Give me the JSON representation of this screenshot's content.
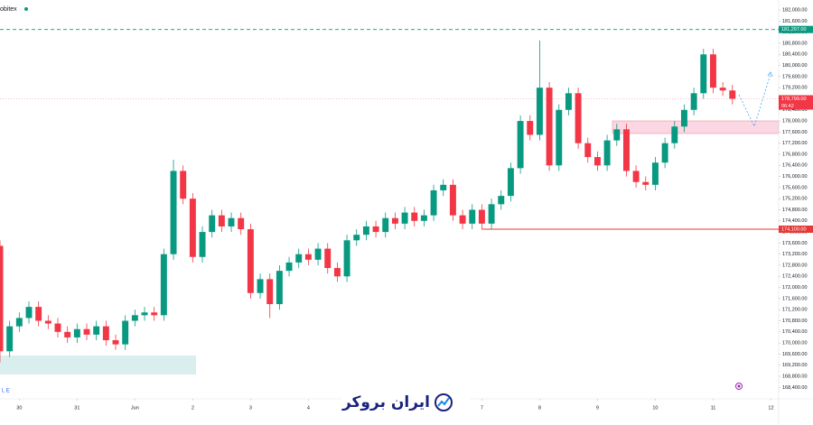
{
  "chart_data": {
    "type": "candlestick",
    "symbol": "obitex",
    "footer_left": "L E",
    "watermark": "ایران بروکر",
    "countdown": "06:42",
    "up_color": "#089981",
    "down_color": "#f23645",
    "xlim": [
      0,
      80.8
    ],
    "xticks": [
      {
        "value": 2,
        "label": "30"
      },
      {
        "value": 8,
        "label": "31"
      },
      {
        "value": 14,
        "label": "Jun"
      },
      {
        "value": 20,
        "label": "2"
      },
      {
        "value": 26,
        "label": "3"
      },
      {
        "value": 32,
        "label": "4"
      },
      {
        "value": 50,
        "label": "7"
      },
      {
        "value": 56,
        "label": "8"
      },
      {
        "value": 62,
        "label": "9"
      },
      {
        "value": 68,
        "label": "10"
      },
      {
        "value": 74,
        "label": "11"
      },
      {
        "value": 80,
        "label": "12"
      }
    ],
    "ylim": [
      168000,
      182360
    ],
    "yticks": [
      {
        "value": 168400,
        "label": "168,400.00"
      },
      {
        "value": 168800,
        "label": "168,800.00"
      },
      {
        "value": 169200,
        "label": "169,200.00"
      },
      {
        "value": 169600,
        "label": "169,600.00"
      },
      {
        "value": 170000,
        "label": "170,000.00"
      },
      {
        "value": 170400,
        "label": "170,400.00"
      },
      {
        "value": 170800,
        "label": "170,800.00"
      },
      {
        "value": 171200,
        "label": "171,200.00"
      },
      {
        "value": 171600,
        "label": "171,600.00"
      },
      {
        "value": 172000,
        "label": "172,000.00"
      },
      {
        "value": 172400,
        "label": "172,400.00"
      },
      {
        "value": 172800,
        "label": "172,800.00"
      },
      {
        "value": 173200,
        "label": "173,200.00"
      },
      {
        "value": 173600,
        "label": "173,600.00"
      },
      {
        "value": 174000,
        "label": "174,000.00"
      },
      {
        "value": 174400,
        "label": "174,400.00"
      },
      {
        "value": 174800,
        "label": "174,800.00"
      },
      {
        "value": 175200,
        "label": "175,200.00"
      },
      {
        "value": 175600,
        "label": "175,600.00"
      },
      {
        "value": 176000,
        "label": "176,000.00"
      },
      {
        "value": 176400,
        "label": "176,400.00"
      },
      {
        "value": 176800,
        "label": "176,800.00"
      },
      {
        "value": 177200,
        "label": "177,200.00"
      },
      {
        "value": 177600,
        "label": "177,600.00"
      },
      {
        "value": 178000,
        "label": "178,000.00"
      },
      {
        "value": 178400,
        "label": "178,400.00"
      },
      {
        "value": 178800,
        "label": "178,800.00"
      },
      {
        "value": 179200,
        "label": "179,200.00"
      },
      {
        "value": 179600,
        "label": "179,600.00"
      },
      {
        "value": 180000,
        "label": "180,000.00"
      },
      {
        "value": 180400,
        "label": "180,400.00"
      },
      {
        "value": 180800,
        "label": "180,800.00"
      },
      {
        "value": 181200,
        "label": "181,200.00"
      },
      {
        "value": 181600,
        "label": "181,600.00"
      },
      {
        "value": 182000,
        "label": "182,000.00"
      }
    ],
    "price_lines": [
      {
        "value": 181297,
        "label": "181,297.00",
        "color": "#089981",
        "style": "dashed",
        "from": 0
      },
      {
        "value": 178799,
        "label": "178,799.00",
        "color": "#f23645",
        "style": "dotted",
        "from": 0
      },
      {
        "value": 174100,
        "label": "174,100.00",
        "color": "#e53935",
        "style": "solid",
        "from": 50
      }
    ],
    "open": [
      173500,
      169700,
      170600,
      170900,
      171300,
      170800,
      170700,
      170400,
      170200,
      170500,
      170300,
      170600,
      170100,
      169950,
      170800,
      171000,
      171100,
      171000,
      173200,
      176200,
      175200,
      173100,
      174000,
      174600,
      174200,
      174500,
      174100,
      171800,
      172300,
      171400,
      172600,
      172900,
      173200,
      173000,
      173400,
      172700,
      172400,
      173700,
      173900,
      174200,
      174000,
      174500,
      174300,
      174700,
      174400,
      174600,
      175500,
      175700,
      174600,
      174300,
      174800,
      174300,
      175000,
      175300,
      176300,
      178000,
      177500,
      179200,
      176400,
      178400,
      179000,
      177200,
      176700,
      176400,
      177300,
      177700,
      176200,
      175800,
      175700,
      176500,
      177200,
      177800,
      178400,
      179000,
      180400,
      179200,
      179100
    ],
    "high": [
      173700,
      170800,
      171100,
      171500,
      171500,
      171000,
      170900,
      170600,
      170700,
      170700,
      170800,
      170800,
      170300,
      171000,
      171200,
      171300,
      171300,
      173400,
      176600,
      176400,
      175400,
      174200,
      174800,
      174800,
      174700,
      174700,
      174300,
      172500,
      172500,
      172800,
      173100,
      173400,
      173400,
      173600,
      173600,
      172900,
      173900,
      174100,
      174400,
      174400,
      174700,
      174700,
      174900,
      174900,
      174800,
      175700,
      175900,
      175900,
      174800,
      175000,
      175000,
      175200,
      175500,
      176500,
      178200,
      178200,
      180900,
      179400,
      178600,
      179200,
      179200,
      177400,
      176900,
      177500,
      177900,
      177900,
      176400,
      176000,
      176700,
      177400,
      178000,
      178600,
      179200,
      180600,
      180600,
      179400,
      179300
    ],
    "low": [
      169300,
      169500,
      170400,
      170700,
      170600,
      170500,
      170200,
      170000,
      170000,
      170100,
      170100,
      169900,
      169750,
      169750,
      170600,
      170800,
      170800,
      170800,
      173000,
      175000,
      172900,
      172900,
      173800,
      174000,
      174000,
      173900,
      171600,
      171600,
      170900,
      171200,
      172400,
      172700,
      172800,
      172800,
      172500,
      172200,
      172200,
      173500,
      173700,
      173800,
      173800,
      174100,
      174100,
      174200,
      174200,
      174400,
      175300,
      174400,
      174100,
      174100,
      174100,
      174100,
      174800,
      175100,
      176100,
      177300,
      177300,
      176200,
      176200,
      178200,
      177000,
      176500,
      176200,
      176200,
      177100,
      176000,
      175600,
      175500,
      175500,
      176300,
      177000,
      177600,
      178200,
      178800,
      179000,
      178900,
      178599
    ],
    "close": [
      169700,
      170600,
      170900,
      171300,
      170800,
      170700,
      170400,
      170200,
      170500,
      170300,
      170600,
      170100,
      169950,
      170800,
      171000,
      171100,
      171000,
      173200,
      176200,
      175200,
      173100,
      174000,
      174600,
      174200,
      174500,
      174100,
      171800,
      172300,
      171400,
      172600,
      172900,
      173200,
      173000,
      173400,
      172700,
      172400,
      173700,
      173900,
      174200,
      174000,
      174500,
      174300,
      174700,
      174400,
      174600,
      175500,
      175700,
      174600,
      174300,
      174800,
      174300,
      175000,
      175300,
      176300,
      178000,
      177500,
      179200,
      176400,
      178400,
      179000,
      177200,
      176700,
      176400,
      177300,
      177700,
      176200,
      175800,
      175700,
      176500,
      177200,
      177800,
      178400,
      179000,
      180400,
      179200,
      179100,
      178799
    ]
  }
}
